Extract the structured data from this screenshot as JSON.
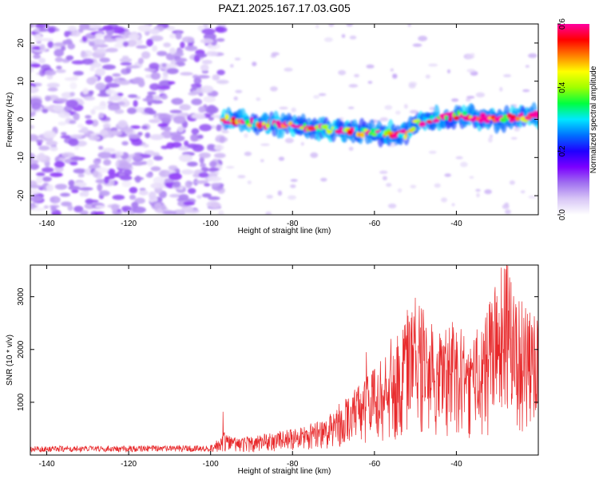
{
  "title": "PAZ1.2025.167.17.03.G05",
  "chart_data": [
    {
      "type": "heatmap",
      "xlabel": "Height of straight line (km)",
      "ylabel": "Frequency (Hz)",
      "xlim": [
        -144,
        -20
      ],
      "ylim": [
        -25,
        25
      ],
      "xticks": [
        -140,
        -120,
        -100,
        -80,
        -60,
        -40
      ],
      "yticks": [
        -20,
        -10,
        0,
        10,
        20
      ],
      "colorbar": {
        "label": "Normalized spectral amplitude",
        "range": [
          0.0,
          0.6
        ],
        "ticks": [
          0.0,
          0.2,
          0.4,
          0.6
        ],
        "colors": [
          "#ffffff",
          "#d8c6f6",
          "#a070f0",
          "#7b00ff",
          "#1f00ff",
          "#0070ff",
          "#00e8ff",
          "#00ff40",
          "#a0ff00",
          "#ffff00",
          "#ff8000",
          "#ff0000",
          "#ff00a0"
        ]
      },
      "features": [
        {
          "name": "noise",
          "x_range": [
            -144,
            -97
          ],
          "y_range": [
            -25,
            25
          ],
          "amplitude": 0.1
        },
        {
          "name": "signal-track",
          "points": [
            [
              -97,
              0
            ],
            [
              -90,
              -1
            ],
            [
              -80,
              -1.5
            ],
            [
              -70,
              -3
            ],
            [
              -60,
              -3.5
            ],
            [
              -52,
              -4
            ],
            [
              -50,
              -1
            ],
            [
              -45,
              0
            ],
            [
              -40,
              1
            ],
            [
              -30,
              0
            ],
            [
              -20,
              1
            ]
          ],
          "amplitude": 0.5
        }
      ]
    },
    {
      "type": "line",
      "xlabel": "Height of straight line (km)",
      "ylabel": "SNR (10 * v/v)",
      "xlim": [
        -144,
        -20
      ],
      "ylim": [
        0,
        3600
      ],
      "xticks": [
        -140,
        -120,
        -100,
        -80,
        -60,
        -40
      ],
      "yticks": [
        1000,
        2000,
        3000
      ],
      "series": [
        {
          "color": "#e8292b",
          "envelope": [
            [
              -144,
              150
            ],
            [
              -100,
              170
            ],
            [
              -97,
              400
            ],
            [
              -95,
              300
            ],
            [
              -90,
              320
            ],
            [
              -80,
              430
            ],
            [
              -72,
              600
            ],
            [
              -68,
              900
            ],
            [
              -62,
              1300
            ],
            [
              -58,
              1600
            ],
            [
              -54,
              2000
            ],
            [
              -50,
              2600
            ],
            [
              -47,
              2300
            ],
            [
              -44,
              2000
            ],
            [
              -40,
              2200
            ],
            [
              -35,
              2000
            ],
            [
              -30,
              2900
            ],
            [
              -28,
              3300
            ],
            [
              -26,
              2800
            ],
            [
              -23,
              2500
            ],
            [
              -20,
              2300
            ]
          ],
          "peaks": [
            [
              -97,
              820
            ],
            [
              -62,
              1950
            ],
            [
              -56,
              2200
            ],
            [
              -52,
              2750
            ],
            [
              -50,
              2980
            ],
            [
              -46,
              2480
            ],
            [
              -41,
              2520
            ],
            [
              -35,
              2380
            ],
            [
              -29,
              3550
            ],
            [
              -28,
              3520
            ],
            [
              -26,
              3010
            ],
            [
              -24,
              2910
            ],
            [
              -21,
              2630
            ]
          ]
        }
      ]
    }
  ]
}
